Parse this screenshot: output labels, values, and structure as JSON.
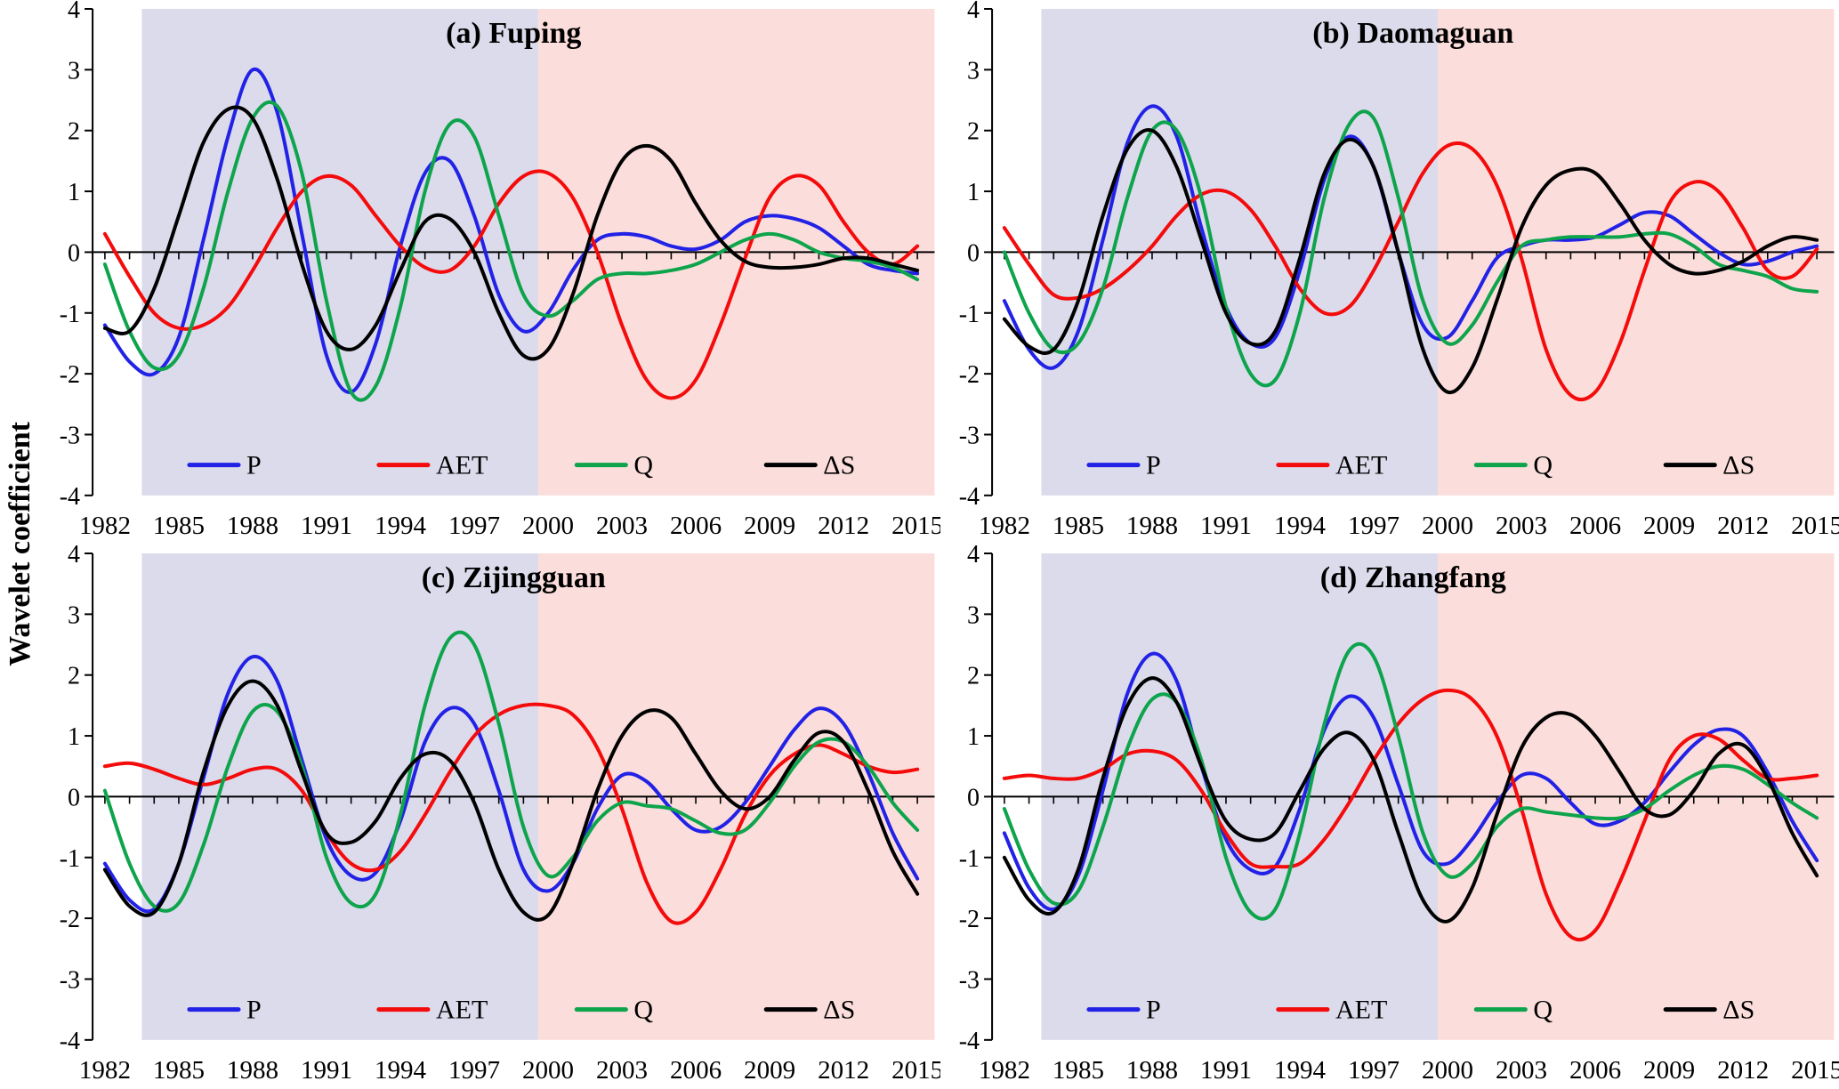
{
  "figure": {
    "ylabel": "Wavelet coefficient"
  },
  "chart_data": {
    "type": "line",
    "ylabel": "Wavelet coefficient",
    "x": [
      1982,
      1983,
      1984,
      1985,
      1986,
      1987,
      1988,
      1989,
      1990,
      1991,
      1992,
      1993,
      1994,
      1995,
      1996,
      1997,
      1998,
      1999,
      2000,
      2001,
      2002,
      2003,
      2004,
      2005,
      2006,
      2007,
      2008,
      2009,
      2010,
      2011,
      2012,
      2013,
      2014,
      2015
    ],
    "xlim": [
      1981.5,
      2015.7
    ],
    "ylim": [
      -4,
      4
    ],
    "y_ticks": [
      -4,
      -3,
      -2,
      -1,
      0,
      1,
      2,
      3,
      4
    ],
    "x_tick_labels": [
      1982,
      1985,
      1988,
      1991,
      1994,
      1997,
      2000,
      2003,
      2006,
      2009,
      2012,
      2015
    ],
    "grid": false,
    "legend_position": "inside-bottom",
    "legend": [
      {
        "label": "P",
        "color": "#2222e6"
      },
      {
        "label": "AET",
        "color": "#f40b0b"
      },
      {
        "label": "Q",
        "color": "#0ea44c"
      },
      {
        "label": "ΔS",
        "color": "#000000"
      }
    ],
    "bands": [
      {
        "from": 1983.5,
        "to": 1999.6,
        "color": "#dcdbec"
      },
      {
        "from": 1999.6,
        "to": 2015.7,
        "color": "#fbdedb"
      }
    ],
    "panels": [
      {
        "title": "(a) Fuping",
        "series": [
          {
            "name": "P",
            "color": "#2222e6",
            "values": [
              -1.2,
              -1.8,
              -2.0,
              -1.4,
              0.2,
              1.9,
              3.0,
              2.3,
              0.3,
              -1.7,
              -2.3,
              -1.5,
              0.1,
              1.3,
              1.5,
              0.6,
              -0.7,
              -1.3,
              -1.0,
              -0.3,
              0.2,
              0.3,
              0.25,
              0.1,
              0.05,
              0.2,
              0.5,
              0.6,
              0.55,
              0.4,
              0.1,
              -0.2,
              -0.3,
              -0.35
            ]
          },
          {
            "name": "AET",
            "color": "#f40b0b",
            "values": [
              0.3,
              -0.4,
              -1.0,
              -1.25,
              -1.2,
              -0.9,
              -0.3,
              0.4,
              1.0,
              1.25,
              1.1,
              0.6,
              0.1,
              -0.25,
              -0.3,
              0.1,
              0.8,
              1.25,
              1.3,
              0.9,
              0.0,
              -1.2,
              -2.1,
              -2.4,
              -2.1,
              -1.2,
              -0.1,
              0.9,
              1.25,
              1.1,
              0.5,
              0.0,
              -0.2,
              0.1
            ]
          },
          {
            "name": "Q",
            "color": "#0ea44c",
            "values": [
              -0.2,
              -1.3,
              -1.9,
              -1.7,
              -0.6,
              1.0,
              2.2,
              2.4,
              1.3,
              -0.8,
              -2.3,
              -2.2,
              -0.9,
              1.0,
              2.1,
              1.9,
              0.6,
              -0.7,
              -1.05,
              -0.8,
              -0.45,
              -0.35,
              -0.35,
              -0.3,
              -0.2,
              0.0,
              0.2,
              0.3,
              0.2,
              0.0,
              -0.1,
              -0.15,
              -0.25,
              -0.45
            ]
          },
          {
            "name": "ΔS",
            "color": "#000000",
            "values": [
              -1.25,
              -1.3,
              -0.6,
              0.6,
              1.8,
              2.35,
              2.2,
              1.2,
              -0.2,
              -1.3,
              -1.6,
              -1.2,
              -0.3,
              0.5,
              0.55,
              0.0,
              -1.0,
              -1.7,
              -1.6,
              -0.7,
              0.6,
              1.5,
              1.75,
              1.5,
              0.8,
              0.2,
              -0.15,
              -0.25,
              -0.25,
              -0.2,
              -0.1,
              -0.1,
              -0.2,
              -0.3
            ]
          }
        ]
      },
      {
        "title": "(b) Daomaguan",
        "series": [
          {
            "name": "P",
            "color": "#2222e6",
            "values": [
              -0.8,
              -1.6,
              -1.9,
              -1.3,
              0.2,
              1.8,
              2.4,
              1.9,
              0.4,
              -0.9,
              -1.5,
              -1.4,
              -0.3,
              1.2,
              1.9,
              1.4,
              0.0,
              -1.2,
              -1.4,
              -0.8,
              -0.1,
              0.1,
              0.2,
              0.2,
              0.25,
              0.45,
              0.65,
              0.6,
              0.3,
              0.0,
              -0.2,
              -0.15,
              0.0,
              0.1
            ]
          },
          {
            "name": "AET",
            "color": "#f40b0b",
            "values": [
              0.4,
              -0.2,
              -0.7,
              -0.75,
              -0.6,
              -0.3,
              0.1,
              0.6,
              0.95,
              1.0,
              0.7,
              0.1,
              -0.6,
              -1.0,
              -0.9,
              -0.3,
              0.5,
              1.3,
              1.75,
              1.7,
              1.1,
              -0.1,
              -1.6,
              -2.35,
              -2.3,
              -1.5,
              -0.3,
              0.8,
              1.15,
              1.0,
              0.4,
              -0.3,
              -0.4,
              0.05
            ]
          },
          {
            "name": "Q",
            "color": "#0ea44c",
            "values": [
              0.0,
              -1.0,
              -1.6,
              -1.5,
              -0.6,
              0.9,
              2.0,
              2.0,
              0.9,
              -0.9,
              -2.0,
              -2.1,
              -1.0,
              0.9,
              2.1,
              2.2,
              0.9,
              -0.8,
              -1.5,
              -1.2,
              -0.5,
              0.1,
              0.2,
              0.25,
              0.25,
              0.25,
              0.3,
              0.3,
              0.1,
              -0.2,
              -0.3,
              -0.4,
              -0.6,
              -0.65
            ]
          },
          {
            "name": "ΔS",
            "color": "#000000",
            "values": [
              -1.1,
              -1.55,
              -1.6,
              -0.8,
              0.6,
              1.7,
              2.0,
              1.4,
              0.2,
              -1.0,
              -1.5,
              -1.3,
              -0.1,
              1.3,
              1.85,
              1.4,
              0.0,
              -1.6,
              -2.3,
              -1.9,
              -0.8,
              0.4,
              1.1,
              1.35,
              1.3,
              0.8,
              0.2,
              -0.2,
              -0.35,
              -0.3,
              -0.15,
              0.1,
              0.25,
              0.2
            ]
          }
        ]
      },
      {
        "title": "(c) Zijingguan",
        "series": [
          {
            "name": "P",
            "color": "#2222e6",
            "values": [
              -1.1,
              -1.7,
              -1.85,
              -1.1,
              0.3,
              1.7,
              2.3,
              1.9,
              0.6,
              -0.7,
              -1.3,
              -1.25,
              -0.4,
              0.9,
              1.45,
              1.2,
              0.1,
              -1.2,
              -1.55,
              -1.1,
              -0.2,
              0.35,
              0.25,
              -0.2,
              -0.55,
              -0.5,
              -0.1,
              0.5,
              1.1,
              1.45,
              1.2,
              0.4,
              -0.6,
              -1.35
            ]
          },
          {
            "name": "AET",
            "color": "#f40b0b",
            "values": [
              0.5,
              0.55,
              0.45,
              0.3,
              0.2,
              0.3,
              0.45,
              0.45,
              0.1,
              -0.6,
              -1.1,
              -1.2,
              -0.9,
              -0.3,
              0.4,
              1.0,
              1.35,
              1.5,
              1.5,
              1.35,
              0.8,
              -0.2,
              -1.4,
              -2.05,
              -1.9,
              -1.2,
              -0.3,
              0.35,
              0.7,
              0.85,
              0.7,
              0.5,
              0.4,
              0.45
            ]
          },
          {
            "name": "Q",
            "color": "#0ea44c",
            "values": [
              0.1,
              -1.1,
              -1.8,
              -1.75,
              -0.8,
              0.5,
              1.4,
              1.4,
              0.5,
              -1.0,
              -1.75,
              -1.6,
              -0.3,
              1.5,
              2.6,
              2.5,
              1.2,
              -0.5,
              -1.3,
              -1.0,
              -0.4,
              -0.1,
              -0.15,
              -0.2,
              -0.4,
              -0.6,
              -0.55,
              -0.1,
              0.5,
              0.9,
              0.9,
              0.5,
              -0.1,
              -0.55
            ]
          },
          {
            "name": "ΔS",
            "color": "#000000",
            "values": [
              -1.2,
              -1.8,
              -1.9,
              -1.1,
              0.4,
              1.5,
              1.9,
              1.5,
              0.4,
              -0.6,
              -0.75,
              -0.4,
              0.3,
              0.7,
              0.6,
              -0.1,
              -1.2,
              -1.9,
              -1.95,
              -1.1,
              0.1,
              1.0,
              1.4,
              1.3,
              0.7,
              0.1,
              -0.2,
              0.0,
              0.6,
              1.05,
              0.9,
              0.1,
              -0.9,
              -1.6
            ]
          }
        ]
      },
      {
        "title": "(d) Zhangfang",
        "series": [
          {
            "name": "P",
            "color": "#2222e6",
            "values": [
              -0.6,
              -1.5,
              -1.85,
              -1.3,
              0.1,
              1.7,
              2.35,
              1.9,
              0.5,
              -0.7,
              -1.2,
              -1.15,
              -0.2,
              1.1,
              1.65,
              1.3,
              0.2,
              -0.9,
              -1.1,
              -0.7,
              -0.1,
              0.35,
              0.3,
              -0.1,
              -0.45,
              -0.4,
              -0.1,
              0.4,
              0.85,
              1.1,
              1.0,
              0.4,
              -0.4,
              -1.05
            ]
          },
          {
            "name": "AET",
            "color": "#f40b0b",
            "values": [
              0.3,
              0.35,
              0.3,
              0.3,
              0.45,
              0.7,
              0.75,
              0.6,
              0.1,
              -0.6,
              -1.1,
              -1.15,
              -1.1,
              -0.7,
              -0.1,
              0.6,
              1.2,
              1.6,
              1.75,
              1.6,
              1.0,
              -0.2,
              -1.6,
              -2.3,
              -2.2,
              -1.4,
              -0.4,
              0.6,
              1.0,
              0.95,
              0.6,
              0.3,
              0.3,
              0.35
            ]
          },
          {
            "name": "Q",
            "color": "#0ea44c",
            "values": [
              -0.2,
              -1.2,
              -1.75,
              -1.55,
              -0.5,
              0.8,
              1.6,
              1.55,
              0.6,
              -1.0,
              -1.9,
              -1.85,
              -0.6,
              1.2,
              2.4,
              2.3,
              1.0,
              -0.6,
              -1.3,
              -1.1,
              -0.5,
              -0.2,
              -0.25,
              -0.3,
              -0.35,
              -0.35,
              -0.2,
              0.1,
              0.35,
              0.5,
              0.45,
              0.2,
              -0.1,
              -0.35
            ]
          },
          {
            "name": "ΔS",
            "color": "#000000",
            "values": [
              -1.0,
              -1.7,
              -1.9,
              -1.2,
              0.3,
              1.5,
              1.95,
              1.55,
              0.5,
              -0.4,
              -0.7,
              -0.6,
              0.1,
              0.8,
              1.05,
              0.6,
              -0.6,
              -1.7,
              -2.05,
              -1.5,
              -0.3,
              0.8,
              1.3,
              1.35,
              1.0,
              0.4,
              -0.2,
              -0.3,
              0.1,
              0.7,
              0.85,
              0.3,
              -0.6,
              -1.3
            ]
          }
        ]
      }
    ]
  }
}
